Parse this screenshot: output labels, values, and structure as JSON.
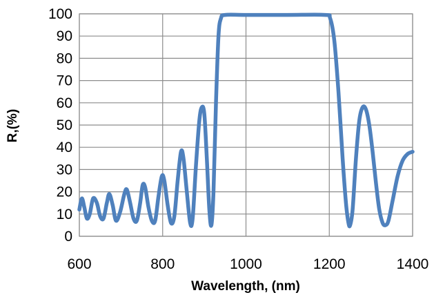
{
  "chart_data": {
    "type": "line",
    "title": "",
    "xlabel": "Wavelength, (nm)",
    "ylabel": "R,(%)",
    "xlim": [
      600,
      1400
    ],
    "ylim": [
      0,
      100
    ],
    "x_ticks": [
      "600",
      "800",
      "1000",
      "1200",
      "1400"
    ],
    "y_ticks": [
      "0",
      "10",
      "20",
      "30",
      "40",
      "50",
      "60",
      "70",
      "80",
      "90",
      "100"
    ],
    "grid": true,
    "legend": "none",
    "series": [
      {
        "color": "#4f81bd",
        "points": [
          [
            600,
            12
          ],
          [
            606,
            17
          ],
          [
            612,
            13
          ],
          [
            618,
            8
          ],
          [
            625,
            10
          ],
          [
            633,
            17
          ],
          [
            642,
            15
          ],
          [
            650,
            9
          ],
          [
            658,
            8
          ],
          [
            666,
            15
          ],
          [
            672,
            19
          ],
          [
            680,
            14
          ],
          [
            688,
            7
          ],
          [
            698,
            11
          ],
          [
            708,
            19
          ],
          [
            714,
            21
          ],
          [
            722,
            15
          ],
          [
            730,
            8
          ],
          [
            738,
            7
          ],
          [
            746,
            15
          ],
          [
            752,
            23
          ],
          [
            758,
            22
          ],
          [
            766,
            13
          ],
          [
            774,
            7
          ],
          [
            782,
            7
          ],
          [
            790,
            18
          ],
          [
            798,
            27
          ],
          [
            804,
            25
          ],
          [
            812,
            14
          ],
          [
            820,
            6
          ],
          [
            828,
            9
          ],
          [
            836,
            25
          ],
          [
            844,
            38
          ],
          [
            850,
            35
          ],
          [
            858,
            20
          ],
          [
            866,
            6
          ],
          [
            872,
            8
          ],
          [
            880,
            32
          ],
          [
            888,
            52
          ],
          [
            894,
            58
          ],
          [
            900,
            55
          ],
          [
            906,
            35
          ],
          [
            912,
            12
          ],
          [
            917,
            5
          ],
          [
            922,
            20
          ],
          [
            928,
            60
          ],
          [
            934,
            90
          ],
          [
            940,
            98
          ],
          [
            950,
            99.5
          ],
          [
            1000,
            99.5
          ],
          [
            1100,
            99.5
          ],
          [
            1190,
            99.5
          ],
          [
            1202,
            98
          ],
          [
            1212,
            88
          ],
          [
            1222,
            65
          ],
          [
            1232,
            35
          ],
          [
            1240,
            15
          ],
          [
            1246,
            6
          ],
          [
            1250,
            5
          ],
          [
            1256,
            12
          ],
          [
            1264,
            35
          ],
          [
            1272,
            52
          ],
          [
            1280,
            58
          ],
          [
            1288,
            57
          ],
          [
            1296,
            50
          ],
          [
            1304,
            38
          ],
          [
            1312,
            24
          ],
          [
            1320,
            12
          ],
          [
            1328,
            6
          ],
          [
            1335,
            5
          ],
          [
            1342,
            7
          ],
          [
            1352,
            16
          ],
          [
            1364,
            27
          ],
          [
            1376,
            34
          ],
          [
            1388,
            37
          ],
          [
            1400,
            38
          ]
        ]
      }
    ]
  }
}
